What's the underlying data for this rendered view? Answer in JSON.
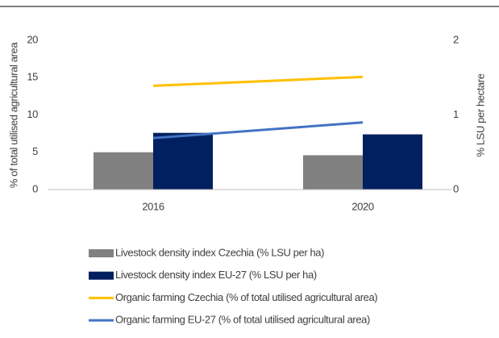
{
  "chart_data": {
    "type": "combo",
    "y_label": "% of total utilised agricultural area",
    "y2_label": "% LSU per hectare",
    "categories": [
      "2016",
      "2020"
    ],
    "ylim": [
      0,
      20
    ],
    "yticks": [
      0,
      5,
      10,
      15,
      20
    ],
    "y2lim": [
      0,
      2
    ],
    "y2ticks": [
      0,
      1,
      2
    ],
    "series": [
      {
        "name": "Livestock density index Czechia (% LSU per ha)",
        "type": "bar",
        "axis": "y2",
        "color": "#808080",
        "values": [
          0.5,
          0.46
        ]
      },
      {
        "name": "Livestock density index EU-27 (% LSU per ha)",
        "type": "bar",
        "axis": "y2",
        "color": "#002060",
        "values": [
          0.76,
          0.74
        ]
      },
      {
        "name": "Organic farming Czechia (% of total utilised agricultural area)",
        "type": "line",
        "color": "#ffc000",
        "values": [
          13.9,
          15.1
        ]
      },
      {
        "name": "Organic farming EU-27 (% of total utilised agricultural area)",
        "type": "line",
        "color": "#4472c4",
        "values": [
          6.9,
          9.0
        ]
      }
    ]
  }
}
